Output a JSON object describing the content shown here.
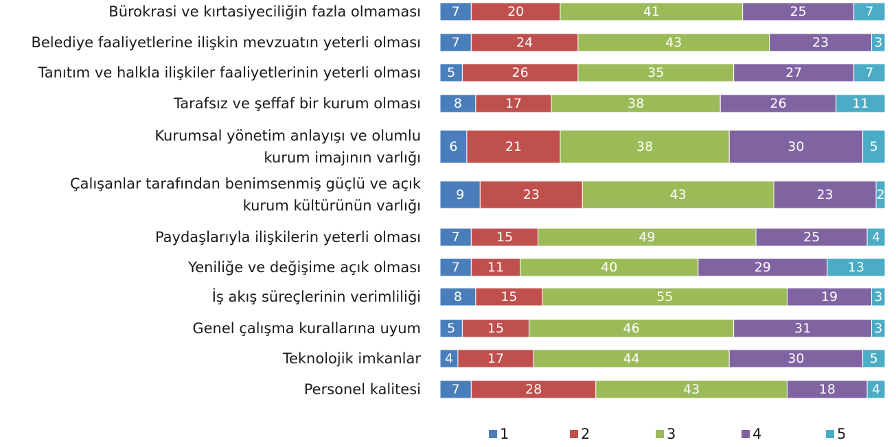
{
  "chart_data": {
    "type": "stacked-bar-horizontal",
    "categories": [
      "Bürokrasi ve kırtasiyeciliğin fazla olmaması",
      "Belediye faaliyetlerine ilişkin mevzuatın yeterli olması",
      "Tanıtım ve halkla ilişkiler faaliyetlerinin yeterli olması",
      "Tarafsız ve şeffaf bir kurum olması",
      [
        "Kurumsal yönetim anlayışı ve olumlu",
        "kurum imajının varlığı"
      ],
      [
        "Çalışanlar tarafından benimsenmiş güçlü ve açık",
        "kurum kültürünün varlığı"
      ],
      "Paydaşlarıyla ilişkilerin yeterli olması",
      "Yeniliğe ve değişime açık olması",
      "İş akış süreçlerinin verimliliği",
      "Genel çalışma kurallarına uyum",
      "Teknolojik imkanlar",
      "Personel kalitesi"
    ],
    "series": [
      {
        "name": "1",
        "color": "#4a7ebb",
        "values": [
          7,
          7,
          5,
          8,
          6,
          9,
          7,
          7,
          8,
          5,
          4,
          7
        ]
      },
      {
        "name": "2",
        "color": "#c0504d",
        "values": [
          20,
          24,
          26,
          17,
          21,
          23,
          15,
          11,
          15,
          15,
          17,
          28
        ]
      },
      {
        "name": "3",
        "color": "#9bbb59",
        "values": [
          41,
          43,
          35,
          38,
          38,
          43,
          49,
          40,
          55,
          46,
          44,
          43
        ]
      },
      {
        "name": "4",
        "color": "#8064a2",
        "values": [
          25,
          23,
          27,
          26,
          30,
          23,
          25,
          29,
          19,
          31,
          30,
          18
        ]
      },
      {
        "name": "5",
        "color": "#4bacc6",
        "values": [
          7,
          3,
          7,
          11,
          5,
          2,
          4,
          13,
          3,
          3,
          5,
          4
        ]
      }
    ],
    "legend": "bottom"
  }
}
